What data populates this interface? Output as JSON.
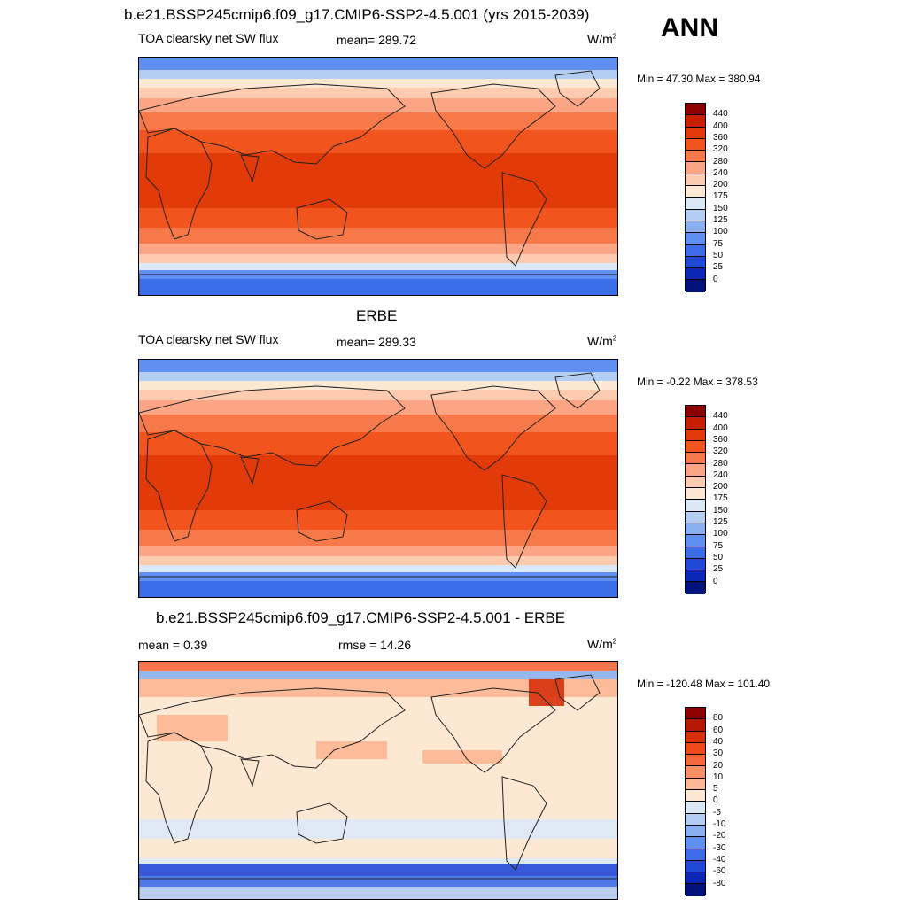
{
  "header": {
    "title": "b.e21.BSSP245cmip6.f09_g17.CMIP6-SSP2-4.5.001 (yrs 2015-2039)",
    "season": "ANN"
  },
  "panels": [
    {
      "id": "model",
      "title": "",
      "variable": "TOA clearsky net SW flux",
      "stat": "mean= 289.72",
      "units": "W/m",
      "units_sup": "2",
      "minmax": "Min =  47.30 Max = 380.94",
      "colorbar": {
        "labels": [
          "440",
          "400",
          "360",
          "320",
          "280",
          "240",
          "200",
          "175",
          "150",
          "125",
          "100",
          "75",
          "50",
          "25",
          "0"
        ],
        "colors": [
          "#8b0000",
          "#c81e00",
          "#e33a0a",
          "#f2541e",
          "#f7794a",
          "#fca584",
          "#fccbb0",
          "#fde8d4",
          "#dbe9f7",
          "#b4cdf2",
          "#8ab0f2",
          "#5f8ff0",
          "#3b6de9",
          "#2149d8",
          "#0c27b5",
          "#00137a"
        ]
      }
    },
    {
      "id": "obs",
      "title": "ERBE",
      "variable": "TOA clearsky net SW flux",
      "stat": "mean= 289.33",
      "units": "W/m",
      "units_sup": "2",
      "minmax": "Min =  -0.22 Max = 378.53",
      "colorbar": {
        "labels": [
          "440",
          "400",
          "360",
          "320",
          "280",
          "240",
          "200",
          "175",
          "150",
          "125",
          "100",
          "75",
          "50",
          "25",
          "0"
        ],
        "colors": [
          "#8b0000",
          "#c81e00",
          "#e33a0a",
          "#f2541e",
          "#f7794a",
          "#fca584",
          "#fccbb0",
          "#fde8d4",
          "#dbe9f7",
          "#b4cdf2",
          "#8ab0f2",
          "#5f8ff0",
          "#3b6de9",
          "#2149d8",
          "#0c27b5",
          "#00137a"
        ]
      }
    },
    {
      "id": "diff",
      "title": "b.e21.BSSP245cmip6.f09_g17.CMIP6-SSP2-4.5.001 - ERBE",
      "variable": "mean =   0.39",
      "stat": "rmse =  14.26",
      "units": "W/m",
      "units_sup": "2",
      "minmax": "Min = -120.48 Max = 101.40",
      "colorbar": {
        "labels": [
          "80",
          "60",
          "40",
          "30",
          "20",
          "10",
          "5",
          "0",
          "-5",
          "-10",
          "-20",
          "-30",
          "-40",
          "-60",
          "-80"
        ],
        "colors": [
          "#8b0000",
          "#b41800",
          "#d6300a",
          "#ee4a1a",
          "#f56a3c",
          "#fa9068",
          "#fcb794",
          "#fde8d4",
          "#dbe9f7",
          "#b4cdf2",
          "#8ab0f2",
          "#5f8ff0",
          "#3b6de9",
          "#2149d8",
          "#0c27b5",
          "#00137a"
        ]
      }
    }
  ]
}
